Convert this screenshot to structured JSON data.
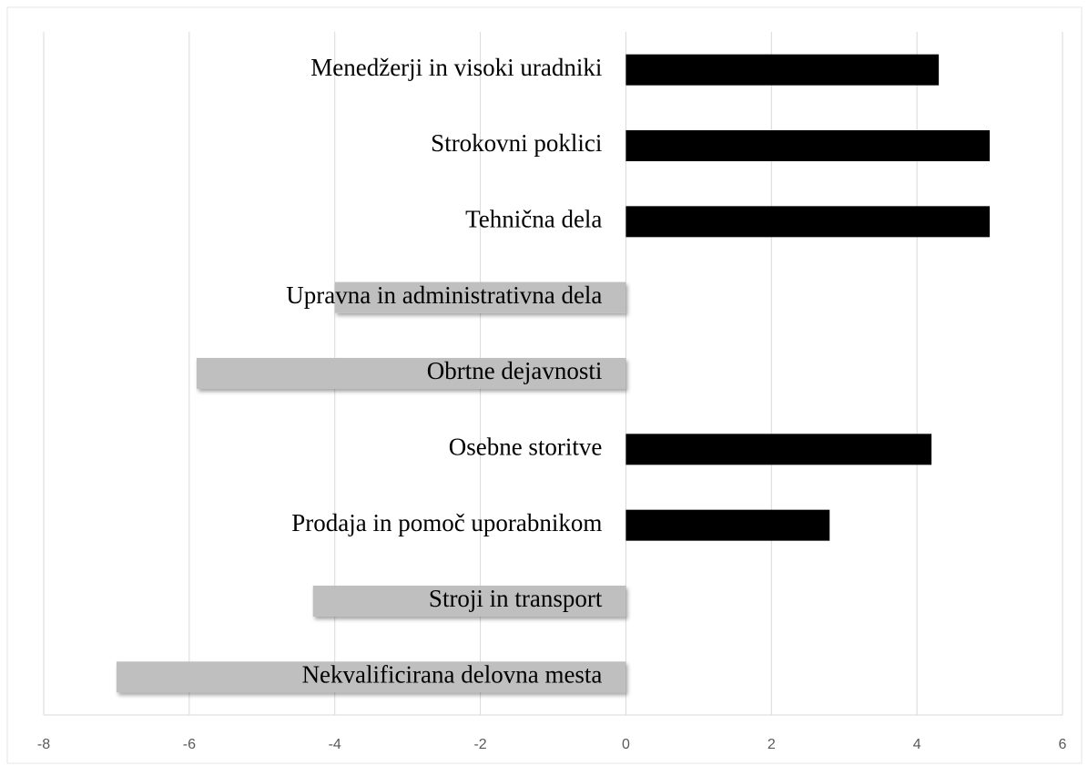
{
  "chart_data": {
    "type": "barh",
    "categories": [
      "Menedžerji in visoki uradniki",
      "Strokovni poklici",
      "Tehnična dela",
      "Upravna in administrativna dela",
      "Obrtne dejavnosti",
      "Osebne storitve",
      "Prodaja in pomoč uporabnikom",
      "Stroji in transport",
      "Nekvalificirana delovna mesta"
    ],
    "values": [
      4.3,
      5.0,
      5.0,
      -4.0,
      -5.9,
      4.2,
      2.8,
      -4.3,
      -7.0
    ],
    "positive_color": "#000000",
    "negative_color": "#bfbfbf",
    "xlim": [
      -8,
      6
    ],
    "xticks": [
      -8,
      -6,
      -4,
      -2,
      0,
      2,
      4,
      6
    ],
    "grid": true
  }
}
